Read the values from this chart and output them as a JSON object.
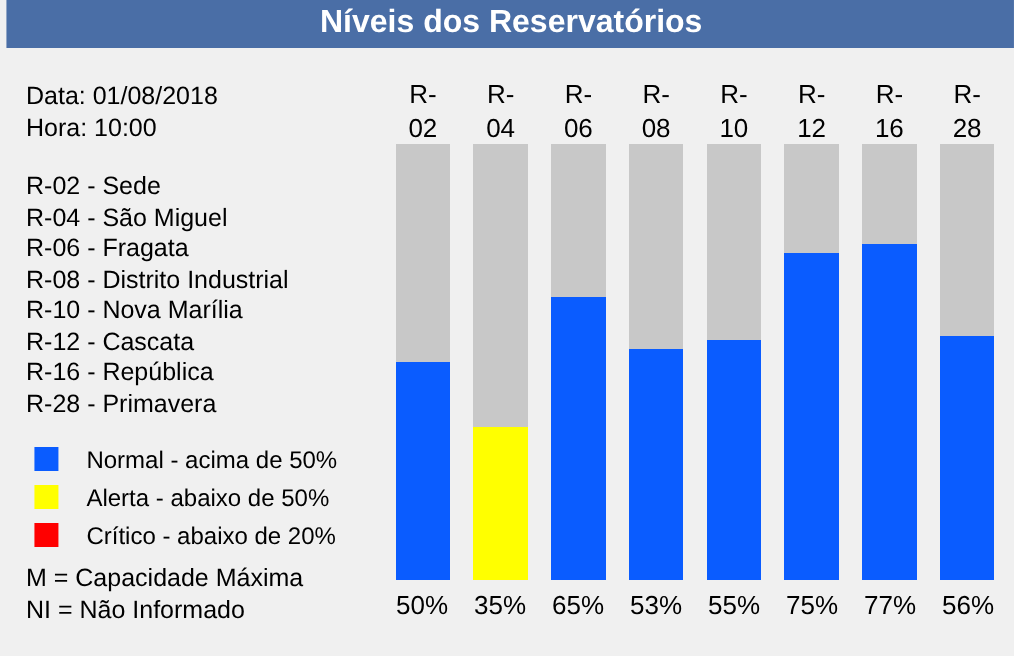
{
  "chart_data": {
    "type": "bar",
    "title": "Níveis dos Reservatórios",
    "categories": [
      "R-02",
      "R-04",
      "R-06",
      "R-08",
      "R-10",
      "R-12",
      "R-16",
      "R-28"
    ],
    "stacked": true,
    "series": [
      {
        "name": "Normal - acima de 50%",
        "color": "#0a5cff",
        "values": [
          50,
          null,
          65,
          53,
          55,
          75,
          77,
          56
        ],
        "value_labels": [
          "50%",
          null,
          "65%",
          "53%",
          "55%",
          "75%",
          "77%",
          "56%"
        ]
      },
      {
        "name": "Alerta - abaixo de 50%",
        "color": "#ffff00",
        "values": [
          null,
          35,
          null,
          null,
          null,
          null,
          null,
          null
        ],
        "value_labels": [
          null,
          "35%",
          null,
          null,
          null,
          null,
          null,
          null
        ]
      },
      {
        "name": "Crítico - abaixo de 20%",
        "color": "#ff0000",
        "values": [
          null,
          null,
          null,
          null,
          null,
          null,
          null,
          null
        ]
      },
      {
        "color": "#c8c8c8",
        "values": [
          50,
          65,
          35,
          47,
          45,
          25,
          23,
          44
        ]
      }
    ],
    "ylim": [
      0,
      100
    ],
    "tick_labels": "x",
    "grid": false,
    "legend": "left",
    "annotations": [
      "Data: 01/08/2018",
      "Hora: 10:00",
      "R-02 - Sede",
      "R-04 - São Miguel",
      "R-06 - Fragata",
      "R-08 - Distrito Industrial",
      "R-10 - Nova Marília",
      "R-12 - Cascata",
      "R-16 - República",
      "R-28 - Primavera",
      "M = Capacidade Máxima",
      "NI = Não Informado"
    ]
  }
}
